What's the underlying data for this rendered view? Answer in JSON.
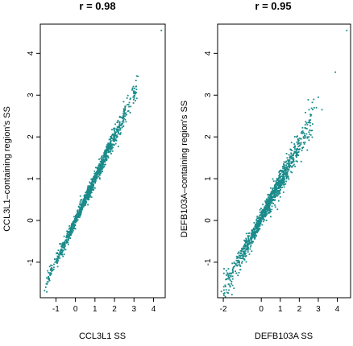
{
  "chart_data": [
    {
      "type": "scatter",
      "title": "r = 0.98",
      "xlabel": "CCL3L1 SS",
      "ylabel": "CCL3L1–containing region's SS",
      "x_ticks": [
        "-1",
        "0",
        "1",
        "2",
        "3",
        "4"
      ],
      "y_ticks": [
        "-1",
        "0",
        "1",
        "2",
        "3",
        "4"
      ],
      "xlim": [
        -1.8,
        4.6
      ],
      "ylim": [
        -1.85,
        4.7
      ],
      "grid": false,
      "legend": "none",
      "point_color": "#1a8a8a",
      "r": 0.98,
      "slope": 1.0,
      "intercept": 0.0,
      "n_points": 1100,
      "x_range_main": [
        -1.5,
        3.2
      ],
      "series": [
        {
          "points": [
            [
              -1.58,
              -1.68
            ],
            [
              -1.52,
              -1.6
            ],
            [
              -1.45,
              -1.52
            ],
            [
              -1.4,
              -1.47
            ],
            [
              -1.35,
              -1.42
            ],
            [
              -1.2,
              -1.15
            ],
            [
              -1.1,
              -1.05
            ],
            [
              -0.95,
              -1.0
            ],
            [
              -0.8,
              -0.9
            ],
            [
              -0.5,
              -0.7
            ],
            [
              0.0,
              -0.2
            ],
            [
              0.5,
              0.4
            ],
            [
              1.0,
              1.0
            ],
            [
              1.5,
              1.6
            ],
            [
              2.0,
              2.0
            ],
            [
              2.5,
              2.6
            ],
            [
              2.8,
              2.9
            ],
            [
              3.0,
              3.1
            ],
            [
              3.1,
              3.35
            ],
            [
              3.2,
              3.45
            ],
            [
              4.4,
              4.55
            ]
          ]
        }
      ]
    },
    {
      "type": "scatter",
      "title": "r = 0.95",
      "xlabel": "DEFB103A SS",
      "ylabel": "DEFB103A–containing region's SS",
      "x_ticks": [
        "-2",
        "0",
        "1",
        "2",
        "3",
        "4"
      ],
      "y_ticks": [
        "-1",
        "0",
        "1",
        "2",
        "3",
        "4"
      ],
      "xlim": [
        -2.3,
        4.7
      ],
      "ylim": [
        -1.85,
        4.7
      ],
      "grid": false,
      "legend": "none",
      "point_color": "#1a8a8a",
      "r": 0.95,
      "slope": 0.88,
      "intercept": 0.05,
      "n_points": 1100,
      "x_range_main": [
        -2.0,
        2.8
      ],
      "series": [
        {
          "points": [
            [
              -2.1,
              -1.7
            ],
            [
              -1.9,
              -1.55
            ],
            [
              -1.7,
              -1.4
            ],
            [
              -1.5,
              -1.25
            ],
            [
              -1.2,
              -1.0
            ],
            [
              -0.8,
              -0.7
            ],
            [
              -0.3,
              -0.3
            ],
            [
              0.0,
              0.05
            ],
            [
              0.5,
              0.5
            ],
            [
              1.0,
              0.95
            ],
            [
              1.5,
              1.45
            ],
            [
              2.0,
              1.85
            ],
            [
              2.4,
              2.2
            ],
            [
              2.6,
              2.5
            ],
            [
              2.9,
              2.7
            ],
            [
              3.0,
              2.95
            ],
            [
              3.2,
              2.65
            ],
            [
              3.9,
              3.55
            ],
            [
              4.5,
              4.55
            ]
          ]
        }
      ]
    }
  ]
}
